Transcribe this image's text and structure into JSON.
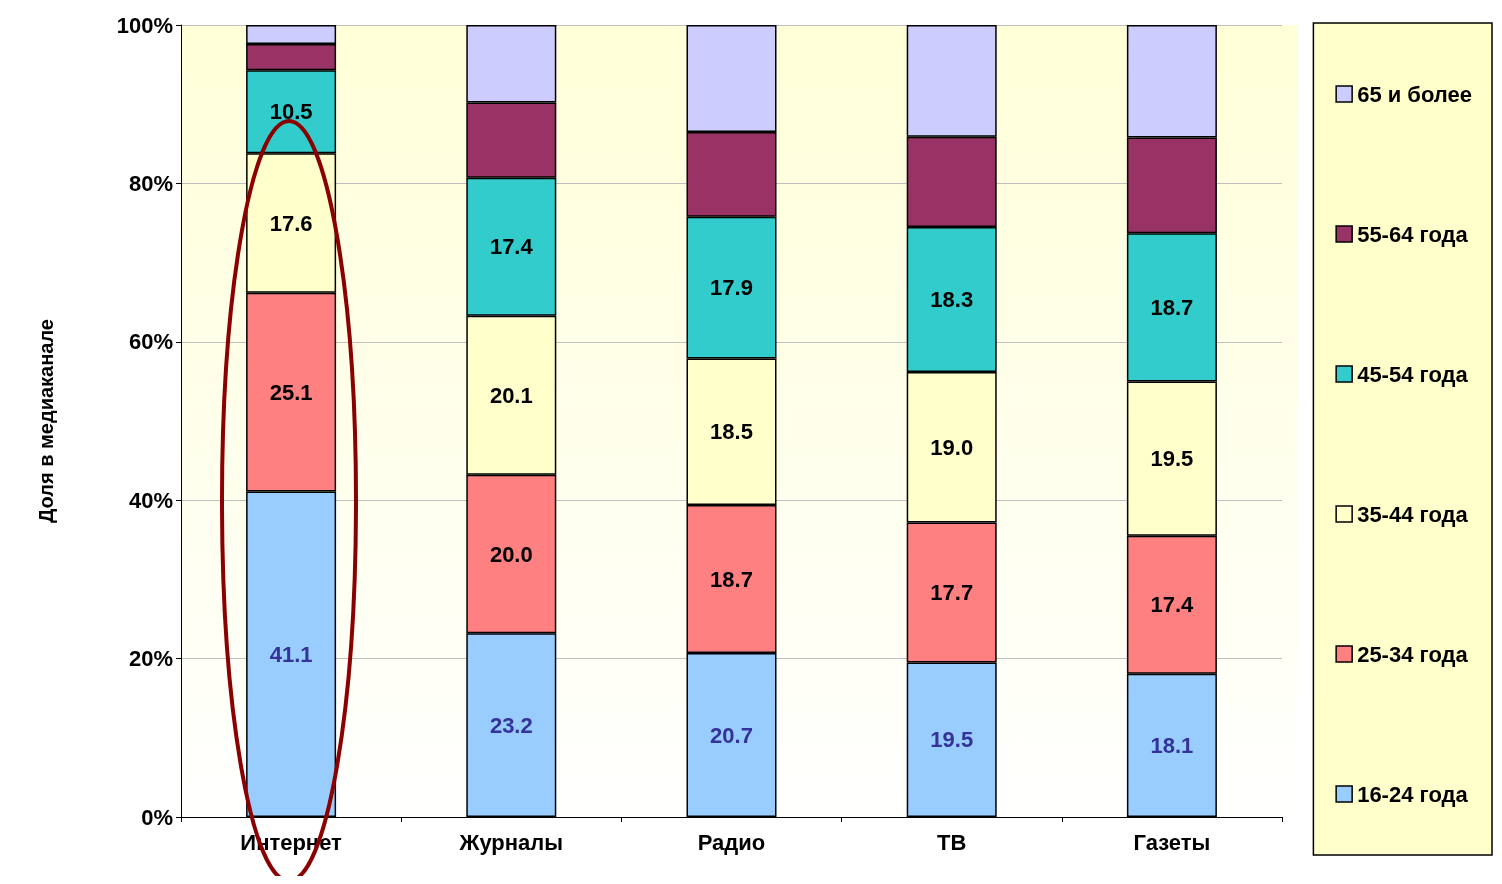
{
  "chart_data": {
    "type": "bar",
    "stacked": true,
    "ylabel": "Доля в медиаканале",
    "categories": [
      "Интернет",
      "Журналы",
      "Радио",
      "ТВ",
      "Газеты"
    ],
    "series": [
      {
        "name": "16-24 года",
        "color": "#99ccff",
        "values": [
          41.1,
          23.2,
          20.7,
          19.5,
          18.1
        ],
        "value_labels": [
          "41.1",
          "23.2",
          "20.7",
          "19.5",
          "18.1"
        ]
      },
      {
        "name": "25-34 года",
        "color": "#ff8080",
        "values": [
          25.1,
          20.0,
          18.7,
          17.7,
          17.4
        ],
        "value_labels": [
          "25.1",
          "20.0",
          "18.7",
          "17.7",
          "17.4"
        ]
      },
      {
        "name": "35-44 года",
        "color": "#ffffcc",
        "values": [
          17.6,
          20.1,
          18.5,
          19.0,
          19.5
        ],
        "value_labels": [
          "17.6",
          "20.1",
          "18.5",
          "19.0",
          "19.5"
        ]
      },
      {
        "name": "45-54 года",
        "color": "#33cccc",
        "values": [
          10.5,
          17.4,
          17.9,
          18.3,
          18.7
        ],
        "value_labels": [
          "10.5",
          "17.4",
          "17.9",
          "18.3",
          "18.7"
        ]
      },
      {
        "name": "55-64 года",
        "color": "#993366",
        "values": [
          3.3,
          9.5,
          10.7,
          11.4,
          12.1
        ]
      },
      {
        "name": "65 и более",
        "color": "#ccccff",
        "values": [
          2.4,
          9.8,
          13.5,
          14.1,
          14.2
        ]
      }
    ],
    "ylim": [
      0,
      100
    ],
    "yticks": [
      {
        "value": 0,
        "label": "0%"
      },
      {
        "value": 20,
        "label": "20%"
      },
      {
        "value": 40,
        "label": "40%"
      },
      {
        "value": 60,
        "label": "60%"
      },
      {
        "value": 80,
        "label": "80%"
      },
      {
        "value": 100,
        "label": "100%"
      }
    ],
    "grid": "y",
    "legend": "right"
  }
}
